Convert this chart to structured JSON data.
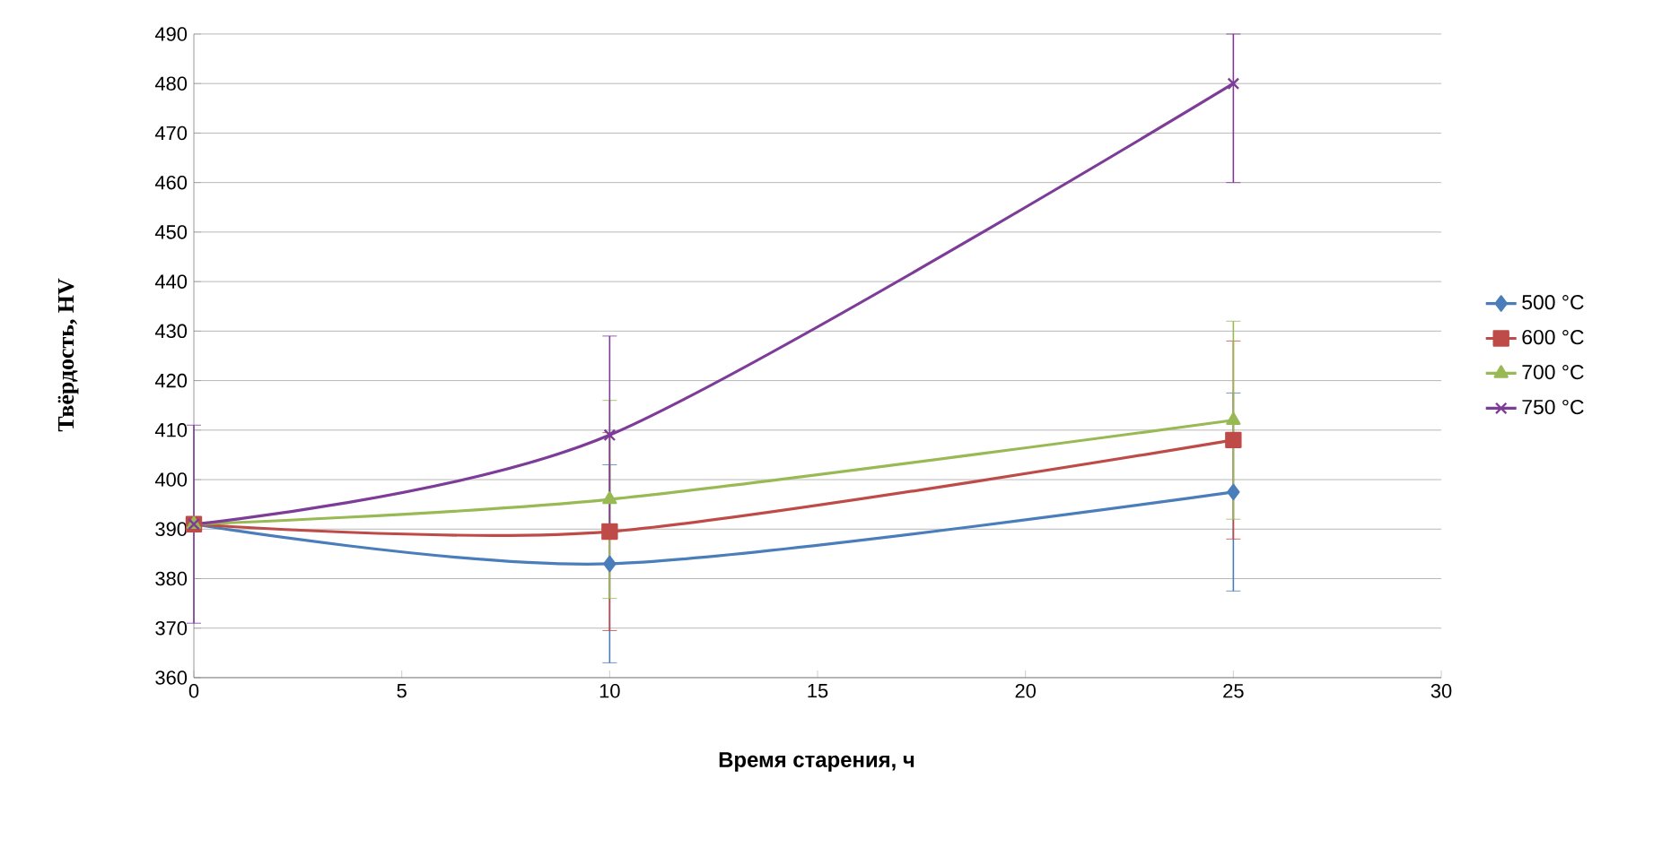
{
  "chart_data": {
    "type": "line",
    "xlabel": "Время старения, ч",
    "ylabel": "Твёрдость, HV",
    "x": [
      0,
      10,
      25
    ],
    "series": [
      {
        "name": "500 °C",
        "color": "#4a7ebb",
        "marker": "diamond",
        "values": [
          391,
          383,
          397.5
        ],
        "errors": [
          null,
          20,
          20
        ]
      },
      {
        "name": "600 °C",
        "color": "#be4b48",
        "marker": "square",
        "values": [
          391,
          389.5,
          408
        ],
        "errors": [
          null,
          20,
          20
        ]
      },
      {
        "name": "700 °C",
        "color": "#98b954",
        "marker": "triangle",
        "values": [
          391,
          396,
          412
        ],
        "errors": [
          null,
          20,
          20
        ]
      },
      {
        "name": "750 °C",
        "color": "#7d3c98",
        "marker": "cross",
        "values": [
          391,
          409,
          480
        ],
        "errors": [
          20,
          20,
          [
            460,
            490
          ]
        ]
      }
    ],
    "xlim": [
      0,
      30
    ],
    "xticks": [
      0,
      5,
      10,
      15,
      20,
      25,
      30
    ],
    "ylim": [
      360,
      490
    ],
    "yticks": [
      360,
      370,
      380,
      390,
      400,
      410,
      420,
      430,
      440,
      450,
      460,
      470,
      480,
      490
    ],
    "grid": "y",
    "legend": "right"
  }
}
